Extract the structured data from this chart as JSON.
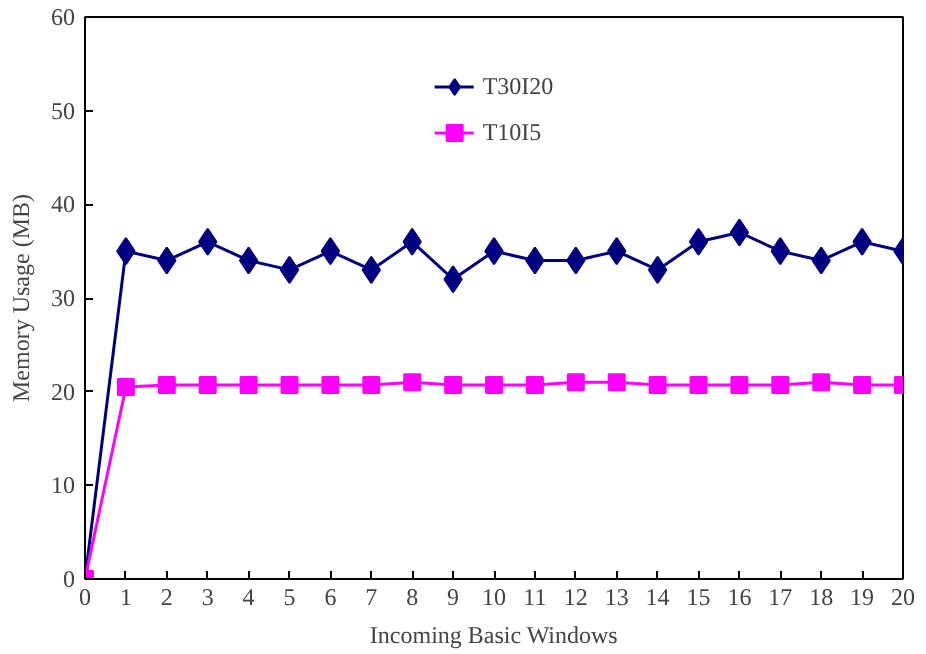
{
  "chart_data": {
    "type": "line",
    "xlabel": "Incoming Basic Windows",
    "ylabel": "Memory Usage (MB)",
    "x": [
      0,
      1,
      2,
      3,
      4,
      5,
      6,
      7,
      8,
      9,
      10,
      11,
      12,
      13,
      14,
      15,
      16,
      17,
      18,
      19,
      20
    ],
    "series": [
      {
        "name": "T30I20",
        "color": "#000080",
        "marker": "diamond",
        "values": [
          0,
          35,
          34,
          36,
          34,
          33,
          35,
          33,
          36,
          32,
          35,
          34,
          34,
          35,
          33,
          36,
          37,
          35,
          34,
          36,
          35
        ]
      },
      {
        "name": "T10I5",
        "color": "#ff00ff",
        "marker": "square",
        "values": [
          0,
          20.5,
          20.7,
          20.7,
          20.7,
          20.7,
          20.7,
          20.7,
          21,
          20.7,
          20.7,
          20.7,
          21,
          21,
          20.7,
          20.7,
          20.7,
          20.7,
          21,
          20.7,
          20.7
        ]
      }
    ],
    "xlim": [
      0,
      20
    ],
    "xticks": [
      0,
      1,
      2,
      3,
      4,
      5,
      6,
      7,
      8,
      9,
      10,
      11,
      12,
      13,
      14,
      15,
      16,
      17,
      18,
      19,
      20
    ],
    "ylim": [
      0,
      60
    ],
    "yticks": [
      0,
      10,
      20,
      30,
      40,
      50,
      60
    ],
    "grid": false,
    "legend": "top",
    "line_style": "solid"
  }
}
